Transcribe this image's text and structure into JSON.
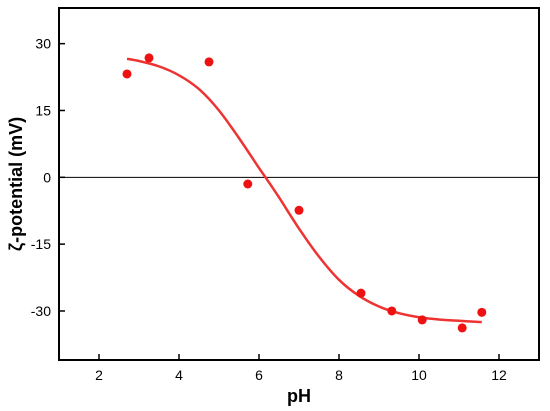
{
  "chart_data": {
    "type": "scatter",
    "title": "",
    "xlabel": "pH",
    "ylabel": "ζ-potential (mV)",
    "xlim": [
      1,
      13
    ],
    "ylim": [
      -41,
      38
    ],
    "x_ticks": [
      2,
      4,
      6,
      8,
      10,
      12
    ],
    "y_ticks": [
      30,
      15,
      0,
      -15,
      -30
    ],
    "x_tick_labels": [
      "2",
      "4",
      "6",
      "8",
      "10",
      "12"
    ],
    "y_tick_labels": [
      "30",
      "15",
      "0",
      "-15",
      "-30"
    ],
    "grid": false,
    "legend": "none",
    "reference_line_y": 0,
    "series": [
      {
        "kind": "scatter",
        "x": [
          2.7,
          3.25,
          4.75,
          5.72,
          7.0,
          8.55,
          9.32,
          10.08,
          11.08,
          11.57
        ],
        "y": [
          23.2,
          26.8,
          25.9,
          -1.5,
          -7.4,
          -26.0,
          -30.0,
          -32.0,
          -33.8,
          -30.3
        ]
      },
      {
        "kind": "fit-line",
        "x": [
          2.7,
          3.0,
          3.5,
          4.0,
          4.5,
          5.0,
          5.5,
          6.0,
          6.2,
          6.5,
          7.0,
          7.5,
          8.0,
          8.5,
          9.0,
          9.5,
          10.0,
          10.5,
          11.0,
          11.57
        ],
        "y": [
          26.6,
          26.1,
          24.9,
          22.9,
          19.8,
          15.0,
          8.8,
          2.1,
          -0.5,
          -4.5,
          -11.5,
          -17.8,
          -23.0,
          -26.6,
          -29.0,
          -30.5,
          -31.4,
          -31.9,
          -32.2,
          -32.5
        ]
      }
    ],
    "colors": {
      "points": "#ee1111",
      "fit_line": "#ee3333",
      "axes": "#000000"
    }
  }
}
